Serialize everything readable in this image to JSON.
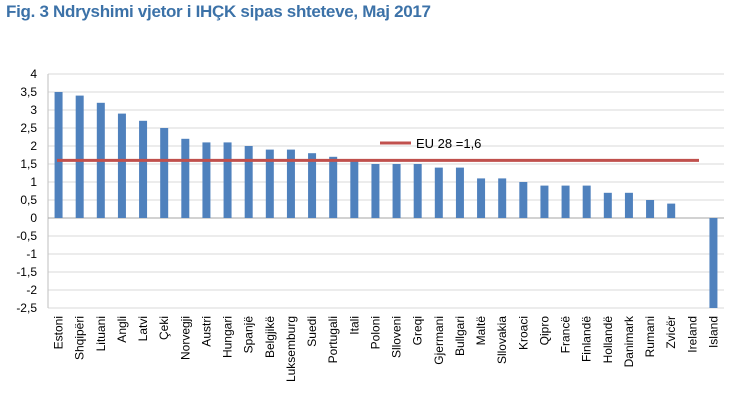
{
  "figure": {
    "title": "Fig. 3 Ndryshimi vjetor i IHÇK sipas shteteve, Maj 2017"
  },
  "chart_data": {
    "type": "bar",
    "categories": [
      "Estoni",
      "Shqipëri",
      "Lituani",
      "Angli",
      "Latvi",
      "Çeki",
      "Norvegji",
      "Austri",
      "Hungari",
      "Spanjë",
      "Belgjikë",
      "Luksemburg",
      "Suedi",
      "Portugali",
      "Itali",
      "Poloni",
      "Slloveni",
      "Greqi",
      "Gjermani",
      "Bullgari",
      "Maltë",
      "Sllovakia",
      "Kroaci",
      "Qipro",
      "Francë",
      "Finlandë",
      "Hollandë",
      "Danimark",
      "Rumani",
      "Zvicër",
      "Ireland",
      "Island"
    ],
    "values": [
      3.5,
      3.4,
      3.2,
      2.9,
      2.7,
      2.5,
      2.2,
      2.1,
      2.1,
      2.0,
      1.9,
      1.9,
      1.8,
      1.7,
      1.6,
      1.5,
      1.5,
      1.5,
      1.4,
      1.4,
      1.1,
      1.1,
      1.0,
      0.9,
      0.9,
      0.9,
      0.7,
      0.7,
      0.5,
      0.4,
      0.0,
      -2.5
    ],
    "ylim": [
      -2.5,
      4
    ],
    "yticks": [
      "4",
      "3,5",
      "3",
      "2,5",
      "2",
      "1,5",
      "1",
      "0,5",
      "0",
      "-0,5",
      "-1",
      "-1,5",
      "-2",
      "-2,5"
    ],
    "grid": true,
    "bar_color": "#4f81bd",
    "reference_line": {
      "label": "EU 28 =1,6",
      "value": 1.6,
      "color": "#c0504d"
    }
  }
}
